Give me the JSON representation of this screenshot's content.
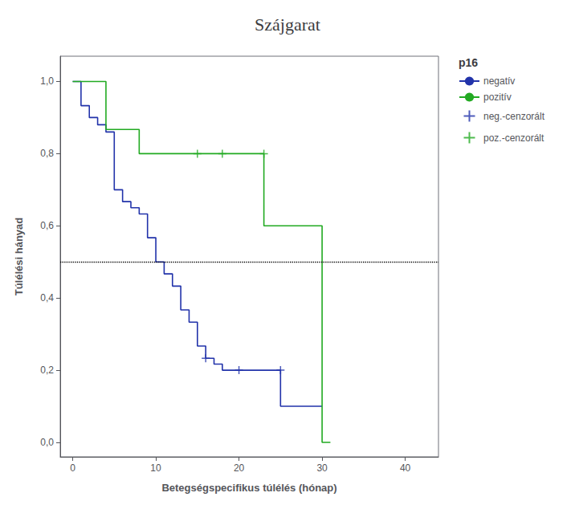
{
  "chart_data": {
    "type": "line",
    "title": "Szájgarat",
    "xlabel": "Betegségspecifikus túlélés (hónap)",
    "ylabel": "Túlélési hányad",
    "legend_title": "p16",
    "legend": "upper right",
    "grid": false,
    "xlim": [
      -1.5,
      44
    ],
    "xticks": [
      0,
      10,
      20,
      30,
      40
    ],
    "ylim": [
      -0.04,
      1.07
    ],
    "yticks": [
      {
        "value": 0.0,
        "label": "0,0"
      },
      {
        "value": 0.2,
        "label": "0,2"
      },
      {
        "value": 0.4,
        "label": "0,4"
      },
      {
        "value": 0.6,
        "label": "0,6"
      },
      {
        "value": 0.8,
        "label": "0,8"
      },
      {
        "value": 1.0,
        "label": "1,0"
      }
    ],
    "reference_line": 0.5,
    "series": [
      {
        "name": "negatív",
        "type": "line",
        "color": "#2233aa",
        "x": [
          0,
          1,
          1,
          2,
          2,
          3,
          3,
          4,
          4,
          5,
          5,
          6,
          6,
          7,
          7,
          8,
          8,
          9,
          9,
          10,
          10,
          11,
          11,
          12,
          12,
          13,
          13,
          14,
          14,
          15,
          15,
          16,
          16,
          17,
          17,
          18,
          18,
          19,
          19,
          20,
          20,
          21,
          21,
          25,
          25,
          27,
          27,
          29,
          29,
          30
        ],
        "values": [
          1.0,
          1.0,
          0.933,
          0.933,
          0.9,
          0.9,
          0.88,
          0.88,
          0.86,
          0.86,
          0.7,
          0.7,
          0.667,
          0.667,
          0.65,
          0.65,
          0.633,
          0.633,
          0.567,
          0.567,
          0.5,
          0.5,
          0.467,
          0.467,
          0.433,
          0.433,
          0.367,
          0.367,
          0.333,
          0.333,
          0.267,
          0.267,
          0.233,
          0.233,
          0.217,
          0.217,
          0.2,
          0.2,
          0.2,
          0.2,
          0.2,
          0.2,
          0.2,
          0.2,
          0.1,
          0.1,
          0.1,
          0.1,
          0.1,
          0.1
        ]
      },
      {
        "name": "pozitív",
        "type": "line",
        "color": "#22aa22",
        "x": [
          0,
          4,
          4,
          8,
          8,
          13,
          13,
          15,
          15,
          18,
          18,
          20,
          20,
          23,
          23,
          25,
          25,
          28,
          28,
          30,
          30,
          31
        ],
        "values": [
          1.0,
          1.0,
          0.867,
          0.867,
          0.8,
          0.8,
          0.8,
          0.8,
          0.8,
          0.8,
          0.8,
          0.8,
          0.8,
          0.8,
          0.6,
          0.6,
          0.6,
          0.6,
          0.6,
          0.6,
          0.0,
          0.0
        ]
      },
      {
        "name": "neg.-cenzorált",
        "type": "scatter",
        "marker": "plus",
        "color": "#2233aa",
        "x": [
          16,
          20,
          25
        ],
        "values": [
          0.233,
          0.2,
          0.2
        ]
      },
      {
        "name": "poz.-cenzorált",
        "type": "scatter",
        "marker": "plus",
        "color": "#22aa22",
        "x": [
          15,
          18,
          23
        ],
        "values": [
          0.8,
          0.8,
          0.8
        ]
      }
    ]
  }
}
